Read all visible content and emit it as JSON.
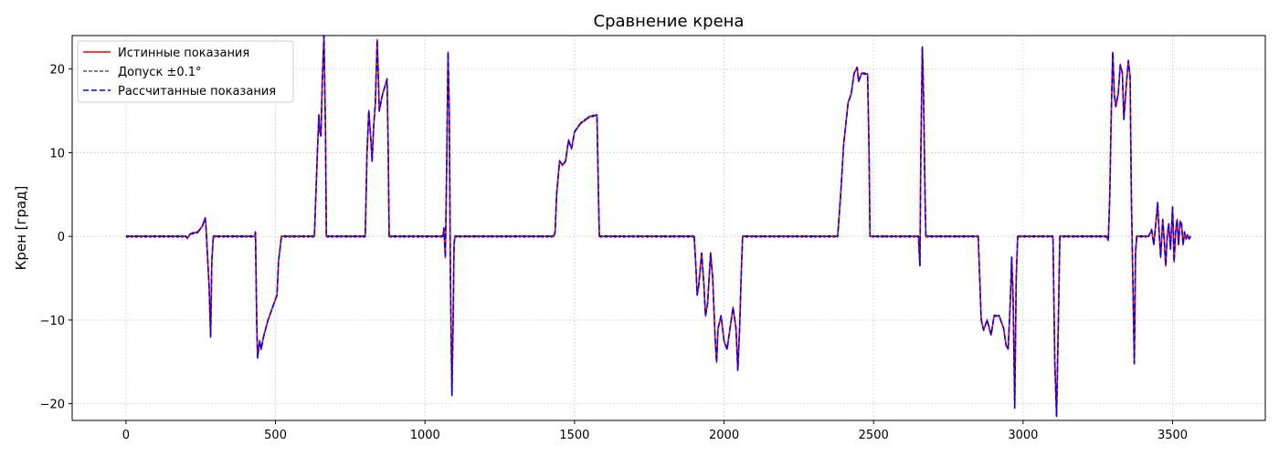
{
  "chart_data": {
    "type": "line",
    "title": "Сравнение крена",
    "xlabel": "",
    "ylabel": "Крен [град]",
    "xlim": [
      -180,
      3810
    ],
    "ylim": [
      -22,
      24
    ],
    "xticks": [
      0,
      500,
      1000,
      1500,
      2000,
      2500,
      3000,
      3500
    ],
    "yticks": [
      -20,
      -10,
      0,
      10,
      20
    ],
    "grid": true,
    "legend_position": "upper-left",
    "colors": {
      "true_series": "#ff0000",
      "tolerance": "#000000",
      "calculated_series": "#0000ff",
      "grid": "#d0d0d0"
    },
    "legend": [
      {
        "label": "Истинные показания",
        "style": "solid",
        "color": "#ff0000"
      },
      {
        "label": "Допуск ±0.1°",
        "style": "dashed",
        "color": "#000000"
      },
      {
        "label": "Рассчитанные показания",
        "style": "dashed",
        "color": "#0000ff"
      }
    ],
    "series": [
      {
        "name": "Истинные показания",
        "points": [
          [
            0,
            0
          ],
          [
            200,
            0
          ],
          [
            205,
            -0.2
          ],
          [
            215,
            0.3
          ],
          [
            240,
            0.5
          ],
          [
            255,
            1.2
          ],
          [
            265,
            2.2
          ],
          [
            268,
            0.8
          ],
          [
            272,
            -2
          ],
          [
            278,
            -6
          ],
          [
            283,
            -12
          ],
          [
            287,
            -3
          ],
          [
            292,
            0
          ],
          [
            430,
            0
          ],
          [
            433,
            0.5
          ],
          [
            437,
            -10
          ],
          [
            440,
            -14.5
          ],
          [
            447,
            -12.5
          ],
          [
            452,
            -13.5
          ],
          [
            460,
            -12
          ],
          [
            475,
            -10
          ],
          [
            495,
            -8
          ],
          [
            505,
            -7
          ],
          [
            510,
            -3
          ],
          [
            520,
            0
          ],
          [
            630,
            0
          ],
          [
            635,
            5
          ],
          [
            640,
            10
          ],
          [
            645,
            14.5
          ],
          [
            648,
            12.5
          ],
          [
            652,
            12
          ],
          [
            656,
            18
          ],
          [
            662,
            24
          ],
          [
            667,
            13
          ],
          [
            670,
            0
          ],
          [
            800,
            0
          ],
          [
            806,
            10
          ],
          [
            812,
            15
          ],
          [
            818,
            12
          ],
          [
            823,
            9
          ],
          [
            828,
            13
          ],
          [
            834,
            16
          ],
          [
            840,
            23.5
          ],
          [
            843,
            20
          ],
          [
            847,
            15
          ],
          [
            858,
            17
          ],
          [
            873,
            18.8
          ],
          [
            877,
            10
          ],
          [
            880,
            0
          ],
          [
            1060,
            0
          ],
          [
            1063,
            1
          ],
          [
            1068,
            -2.5
          ],
          [
            1073,
            10
          ],
          [
            1077,
            22
          ],
          [
            1081,
            15
          ],
          [
            1085,
            -5
          ],
          [
            1090,
            -19
          ],
          [
            1094,
            -10
          ],
          [
            1097,
            -1
          ],
          [
            1100,
            0
          ],
          [
            1430,
            0
          ],
          [
            1435,
            0.5
          ],
          [
            1440,
            5
          ],
          [
            1450,
            9
          ],
          [
            1460,
            8.5
          ],
          [
            1470,
            9
          ],
          [
            1480,
            11.5
          ],
          [
            1490,
            10.5
          ],
          [
            1500,
            12.5
          ],
          [
            1520,
            13.5
          ],
          [
            1550,
            14.3
          ],
          [
            1575,
            14.5
          ],
          [
            1580,
            5
          ],
          [
            1583,
            0
          ],
          [
            1900,
            0
          ],
          [
            1905,
            -3
          ],
          [
            1910,
            -7
          ],
          [
            1915,
            -6
          ],
          [
            1925,
            -2
          ],
          [
            1933,
            -6
          ],
          [
            1938,
            -9.5
          ],
          [
            1945,
            -8
          ],
          [
            1955,
            -2
          ],
          [
            1962,
            -5
          ],
          [
            1970,
            -12
          ],
          [
            1975,
            -15
          ],
          [
            1980,
            -11
          ],
          [
            1990,
            -9.5
          ],
          [
            2000,
            -12.5
          ],
          [
            2010,
            -13.5
          ],
          [
            2020,
            -11
          ],
          [
            2030,
            -8.5
          ],
          [
            2040,
            -11
          ],
          [
            2046,
            -16
          ],
          [
            2052,
            -11
          ],
          [
            2057,
            -5
          ],
          [
            2062,
            0
          ],
          [
            2380,
            0
          ],
          [
            2390,
            5
          ],
          [
            2400,
            11
          ],
          [
            2415,
            16
          ],
          [
            2425,
            17
          ],
          [
            2435,
            19.5
          ],
          [
            2445,
            20.2
          ],
          [
            2450,
            18.5
          ],
          [
            2460,
            19.5
          ],
          [
            2480,
            19.4
          ],
          [
            2485,
            10
          ],
          [
            2488,
            0
          ],
          [
            2650,
            0
          ],
          [
            2655,
            -3.5
          ],
          [
            2658,
            10
          ],
          [
            2663,
            22.6
          ],
          [
            2667,
            17
          ],
          [
            2672,
            5
          ],
          [
            2675,
            0
          ],
          [
            2850,
            0
          ],
          [
            2855,
            -5
          ],
          [
            2860,
            -10
          ],
          [
            2868,
            -11.2
          ],
          [
            2880,
            -10
          ],
          [
            2893,
            -11.8
          ],
          [
            2903,
            -9.5
          ],
          [
            2920,
            -9.5
          ],
          [
            2935,
            -11
          ],
          [
            2943,
            -13
          ],
          [
            2950,
            -13.5
          ],
          [
            2957,
            -8
          ],
          [
            2962,
            -2.5
          ],
          [
            2967,
            -8
          ],
          [
            2972,
            -20.5
          ],
          [
            2977,
            -5
          ],
          [
            2982,
            0
          ],
          [
            3100,
            0
          ],
          [
            3106,
            -15
          ],
          [
            3112,
            -21.5
          ],
          [
            3118,
            -10
          ],
          [
            3123,
            0
          ],
          [
            3280,
            0
          ],
          [
            3285,
            -0.5
          ],
          [
            3290,
            5
          ],
          [
            3295,
            15
          ],
          [
            3300,
            22
          ],
          [
            3305,
            17
          ],
          [
            3310,
            15.5
          ],
          [
            3318,
            17
          ],
          [
            3325,
            20.5
          ],
          [
            3332,
            19.5
          ],
          [
            3337,
            14
          ],
          [
            3345,
            18
          ],
          [
            3352,
            21
          ],
          [
            3358,
            19
          ],
          [
            3362,
            5
          ],
          [
            3367,
            -5
          ],
          [
            3372,
            -15.2
          ],
          [
            3376,
            -2
          ],
          [
            3380,
            0
          ],
          [
            3420,
            0
          ],
          [
            3430,
            0.8
          ],
          [
            3437,
            -1
          ],
          [
            3445,
            2
          ],
          [
            3450,
            4
          ],
          [
            3455,
            0.5
          ],
          [
            3460,
            -2.5
          ],
          [
            3467,
            2
          ],
          [
            3472,
            -0.5
          ],
          [
            3477,
            -3.5
          ],
          [
            3482,
            0
          ],
          [
            3487,
            1.5
          ],
          [
            3493,
            -1.5
          ],
          [
            3500,
            3.5
          ],
          [
            3505,
            -3
          ],
          [
            3510,
            0.5
          ],
          [
            3515,
            2
          ],
          [
            3520,
            -1
          ],
          [
            3525,
            1.8
          ],
          [
            3530,
            1.5
          ],
          [
            3535,
            -1
          ],
          [
            3540,
            0.5
          ],
          [
            3545,
            -0.3
          ],
          [
            3550,
            0.2
          ],
          [
            3555,
            -0.3
          ],
          [
            3560,
            0
          ]
        ]
      }
    ]
  }
}
